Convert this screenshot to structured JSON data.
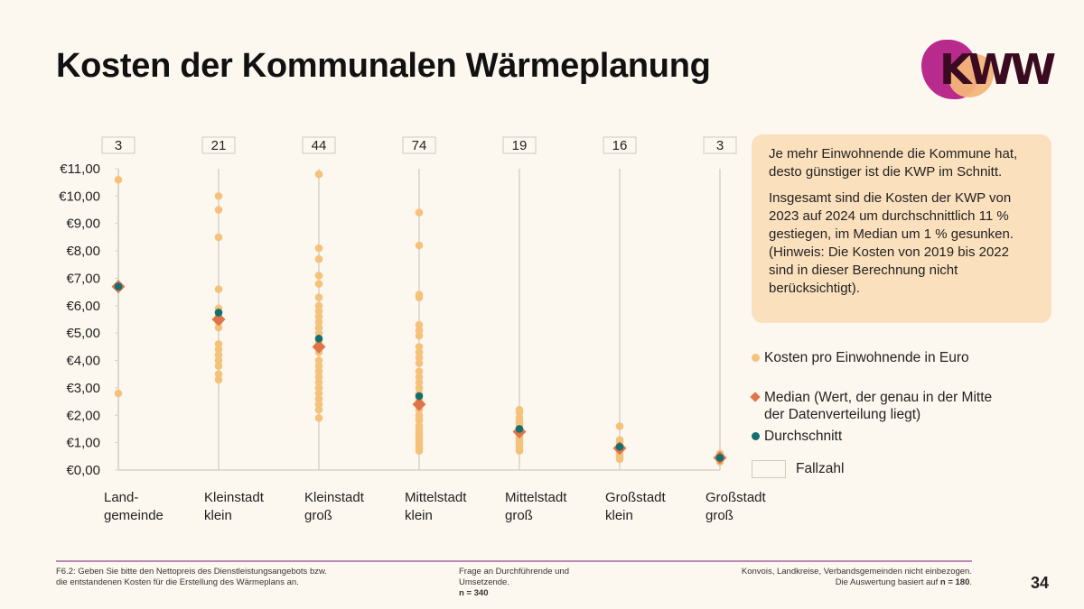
{
  "title": "Kosten der Kommunalen Wärmeplanung",
  "logo_text": "KWW",
  "callout": {
    "p1": "Je mehr Einwohnende die Kommune hat, desto günstiger ist die KWP im Schnitt.",
    "p2": "Insgesamt sind die Kosten der KWP von 2023 auf 2024 um durchschnittlich 11 % gestiegen, im Median um 1 % gesunken. (Hinweis: Die Kosten von 2019 bis 2022 sind in dieser Berechnung nicht berücksichtigt)."
  },
  "legend": {
    "points": "Kosten pro Einwohnende in Euro",
    "median_l1": "Median (Wert, der genau in der Mitte",
    "median_l2": "der Datenverteilung liegt)",
    "mean": "Durchschnitt",
    "count": "Fallzahl"
  },
  "colors": {
    "points": "#f5c27c",
    "median": "#e07449",
    "mean": "#13706f",
    "axis": "#d6d2cb"
  },
  "chart_data": {
    "type": "scatter",
    "ylim": [
      0,
      11
    ],
    "ytick_labels": [
      "€0,00",
      "€1,00",
      "€2,00",
      "€3,00",
      "€4,00",
      "€5,00",
      "€6,00",
      "€7,00",
      "€8,00",
      "€9,00",
      "€10,00",
      "€11,00"
    ],
    "categories": [
      {
        "label1": "Land-",
        "label2": "gemeinde",
        "n": "3",
        "median": 6.7,
        "mean": 6.7,
        "values": [
          10.6,
          6.7,
          2.8
        ]
      },
      {
        "label1": "Kleinstadt",
        "label2": "klein",
        "n": "21",
        "median": 5.5,
        "mean": 5.75,
        "values": [
          10.0,
          9.5,
          8.5,
          6.6,
          5.9,
          5.6,
          5.4,
          5.2,
          4.6,
          4.4,
          4.2,
          4.0,
          3.8,
          3.5,
          3.3
        ]
      },
      {
        "label1": "Kleinstadt",
        "label2": "groß",
        "n": "44",
        "median": 4.5,
        "mean": 4.8,
        "values": [
          10.8,
          8.1,
          7.7,
          7.1,
          6.8,
          6.3,
          6.0,
          5.8,
          5.6,
          5.4,
          5.2,
          5.0,
          4.7,
          4.3,
          4.0,
          3.8,
          3.6,
          3.4,
          3.2,
          3.0,
          2.8,
          2.6,
          2.4,
          2.2,
          1.9
        ]
      },
      {
        "label1": "Mittelstadt",
        "label2": "klein",
        "n": "74",
        "median": 2.4,
        "mean": 2.7,
        "values": [
          9.4,
          8.2,
          6.4,
          6.3,
          5.3,
          5.1,
          4.9,
          4.5,
          4.3,
          4.1,
          3.9,
          3.6,
          3.4,
          3.2,
          3.0,
          2.8,
          2.6,
          2.5,
          2.2,
          2.0,
          1.9,
          1.8,
          1.6,
          1.5,
          1.4,
          1.3,
          1.2,
          1.1,
          1.0,
          0.9,
          0.8,
          0.7
        ]
      },
      {
        "label1": "Mittelstadt",
        "label2": "groß",
        "n": "19",
        "median": 1.4,
        "mean": 1.5,
        "values": [
          2.2,
          2.1,
          1.9,
          1.8,
          1.7,
          1.6,
          1.5,
          1.3,
          1.2,
          1.1,
          1.0,
          0.9,
          0.8,
          0.7
        ]
      },
      {
        "label1": "Großstadt",
        "label2": "klein",
        "n": "16",
        "median": 0.8,
        "mean": 0.85,
        "values": [
          1.6,
          1.1,
          1.0,
          0.9,
          0.8,
          0.7,
          0.6,
          0.5,
          0.4
        ]
      },
      {
        "label1": "Großstadt",
        "label2": "groß",
        "n": "3",
        "median": 0.45,
        "mean": 0.45,
        "values": [
          0.6,
          0.45,
          0.3
        ]
      }
    ]
  },
  "footer": {
    "q1": "F6.2: Geben Sie bitte den Nettopreis des Dienstleistungsangebots bzw.",
    "q2": "die entstandenen Kosten für die Erstellung des Wärmeplans an.",
    "t1": "Frage an Durchführende und",
    "t2": "Umsetzende.",
    "n": "n = 340",
    "r1": "Konvois, Landkreise, Verbandsgemeinden nicht einbezogen.",
    "r2_pre": "Die Auswertung basiert auf ",
    "r2_n": "n = 180",
    "r2_post": "."
  },
  "page_number": "34"
}
